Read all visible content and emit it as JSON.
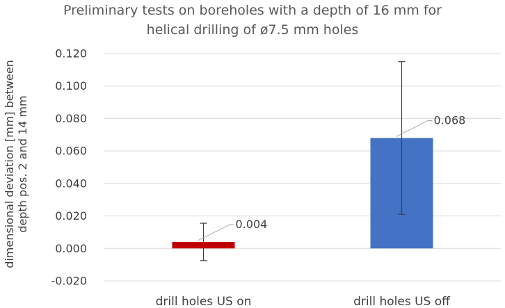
{
  "chart_data": {
    "type": "bar",
    "title": [
      "Preliminary tests on boreholes with a depth of 16 mm for",
      "helical drilling of ø7.5 mm holes"
    ],
    "ylabel": [
      "dimensional deviation [mm] between",
      "depth pos. 2 and 14 mm"
    ],
    "xlabel": "",
    "categories": [
      "drill holes US on",
      "drill holes US off"
    ],
    "values": [
      0.004,
      0.068
    ],
    "data_labels": [
      "0.004",
      "0.068"
    ],
    "error_bars": [
      [
        -0.0075,
        0.0155
      ],
      [
        0.021,
        0.115
      ]
    ],
    "bar_colors": [
      "#C00000",
      "#4472C4"
    ],
    "ylim": [
      -0.02,
      0.12
    ],
    "yticks": [
      -0.02,
      0,
      0.02,
      0.04,
      0.06,
      0.08,
      0.1,
      0.12
    ],
    "ytick_labels": [
      "-0.020",
      "0.000",
      "0.020",
      "0.040",
      "0.060",
      "0.080",
      "0.100",
      "0.120"
    ],
    "grid": true,
    "legend": "none"
  }
}
